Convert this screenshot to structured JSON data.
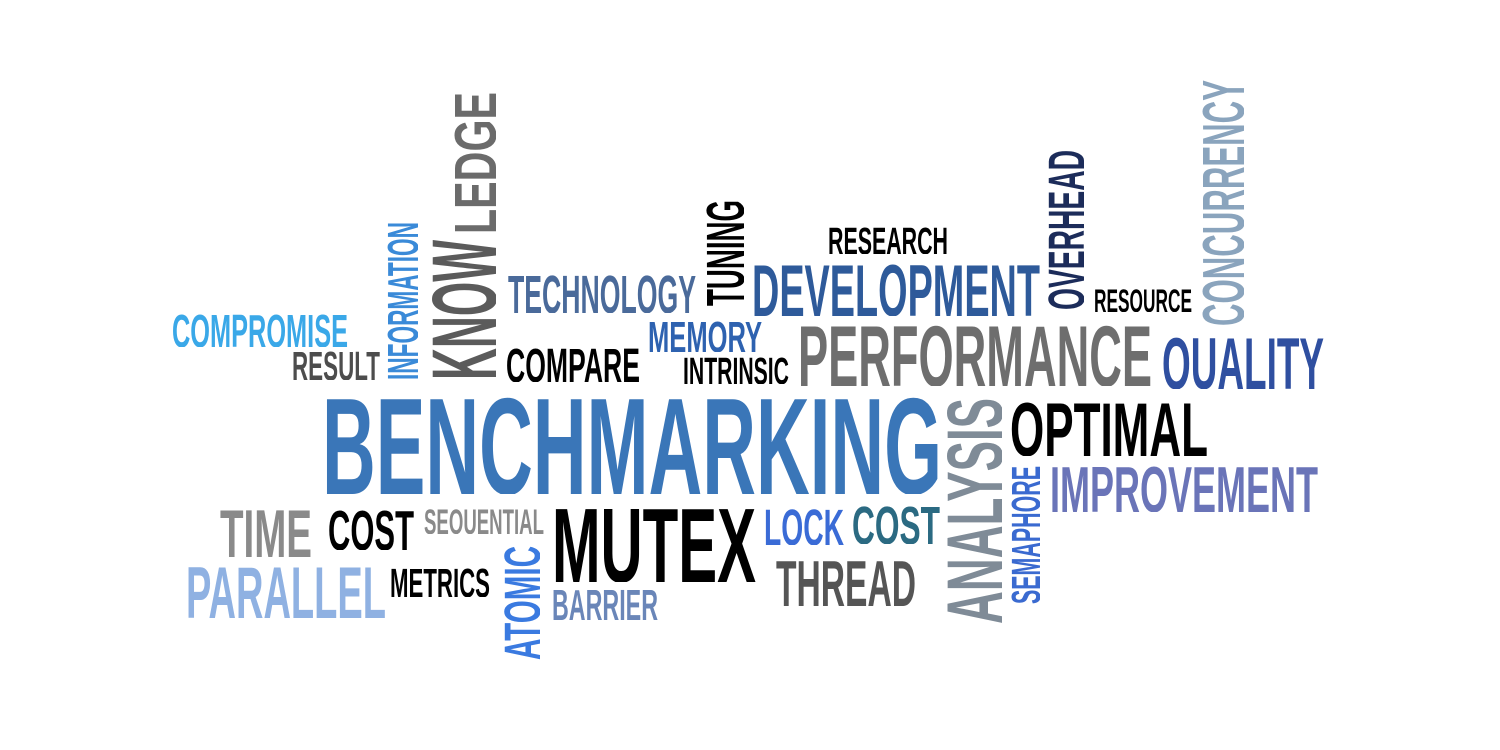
{
  "words": [
    {
      "id": "benchmarking",
      "text": "BENCHMARKING",
      "color": "#3a76b8"
    },
    {
      "id": "performance",
      "text": "PERFORMANCE",
      "color": "#6e6e6e"
    },
    {
      "id": "development",
      "text": "DEVELOPMENT",
      "color": "#2e5a9a"
    },
    {
      "id": "mutex",
      "text": "MUTEX",
      "color": "#000000"
    },
    {
      "id": "optimal",
      "text": "OPTIMAL",
      "color": "#000000"
    },
    {
      "id": "improvement",
      "text": "IMPROVEMENT",
      "color": "#6a74b8"
    },
    {
      "id": "quality",
      "text": "QUALITY",
      "color": "#2f4fa0"
    },
    {
      "id": "analysis",
      "text": "ANALYSIS",
      "color": "#7f8b97"
    },
    {
      "id": "knowledge-know",
      "text": "KNOW",
      "color": "#5b5b5b"
    },
    {
      "id": "knowledge-ledge",
      "text": "LEDGE",
      "color": "#6b6b6b"
    },
    {
      "id": "concurrency",
      "text": "CONCURRENCY",
      "color": "#8aa4bd"
    },
    {
      "id": "overhead",
      "text": "OVERHEAD",
      "color": "#1c2c5a"
    },
    {
      "id": "thread",
      "text": "THREAD",
      "color": "#555555"
    },
    {
      "id": "parallel",
      "text": "PARALLEL",
      "color": "#8fb1e2"
    },
    {
      "id": "time",
      "text": "TIME",
      "color": "#8a8a8a"
    },
    {
      "id": "cost-black",
      "text": "COST",
      "color": "#000000"
    },
    {
      "id": "cost-teal",
      "text": "COST",
      "color": "#2b6a82"
    },
    {
      "id": "lock",
      "text": "LOCK",
      "color": "#3a6bd6"
    },
    {
      "id": "technology",
      "text": "TECHNOLOGY",
      "color": "#4a6a9a"
    },
    {
      "id": "tuning",
      "text": "TUNING",
      "color": "#000000"
    },
    {
      "id": "memory",
      "text": "MEMORY",
      "color": "#2e62b0"
    },
    {
      "id": "compare",
      "text": "COMPARE",
      "color": "#000000"
    },
    {
      "id": "intrinsic",
      "text": "INTRINSIC",
      "color": "#000000"
    },
    {
      "id": "research",
      "text": "RESEARCH",
      "color": "#000000"
    },
    {
      "id": "resource",
      "text": "RESOURCE",
      "color": "#000000"
    },
    {
      "id": "compromise",
      "text": "COMPROMISE",
      "color": "#3aa8e8"
    },
    {
      "id": "result",
      "text": "RESULT",
      "color": "#4d4d4d"
    },
    {
      "id": "information",
      "text": "INFORMATION",
      "color": "#3a8ad8"
    },
    {
      "id": "sequential",
      "text": "SEQUENTIAL",
      "color": "#8a8a8a"
    },
    {
      "id": "metrics",
      "text": "METRICS",
      "color": "#000000"
    },
    {
      "id": "atomic",
      "text": "ATOMIC",
      "color": "#3a7ae0"
    },
    {
      "id": "barrier",
      "text": "BARRIER",
      "color": "#6a86b8"
    },
    {
      "id": "semaphore",
      "text": "SEMAPHORE",
      "color": "#3a6ad0"
    }
  ]
}
